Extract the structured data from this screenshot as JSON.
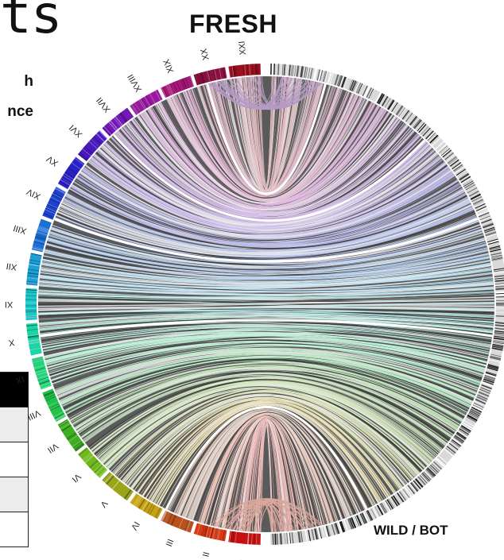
{
  "figure": {
    "clipped_heading": "ts",
    "side_line_1": "h",
    "side_line_2": "nce",
    "top_label": "FRESH",
    "bottom_label": "WILD / BOT"
  },
  "chromosomes": [
    {
      "name": "I",
      "color": "#c81010"
    },
    {
      "name": "II",
      "color": "#d83a14"
    },
    {
      "name": "III",
      "color": "#b8521c"
    },
    {
      "name": "IV",
      "color": "#c7a112"
    },
    {
      "name": "V",
      "color": "#9aa618"
    },
    {
      "name": "VI",
      "color": "#6fb81a"
    },
    {
      "name": "VII",
      "color": "#3fae22"
    },
    {
      "name": "VIII",
      "color": "#21c24a"
    },
    {
      "name": "IX",
      "color": "#22d37a"
    },
    {
      "name": "X",
      "color": "#1ad4a5"
    },
    {
      "name": "XI",
      "color": "#1ec8c8"
    },
    {
      "name": "XII",
      "color": "#1c9ed6"
    },
    {
      "name": "XIII",
      "color": "#1c6fd6"
    },
    {
      "name": "XIV",
      "color": "#1c40d0"
    },
    {
      "name": "XV",
      "color": "#2a20c8"
    },
    {
      "name": "XVI",
      "color": "#4a18c0"
    },
    {
      "name": "XVII",
      "color": "#7218b8"
    },
    {
      "name": "XVIII",
      "color": "#9a18a0"
    },
    {
      "name": "XIX",
      "color": "#a81878"
    },
    {
      "name": "XX",
      "color": "#8c1040"
    },
    {
      "name": "XXI",
      "color": "#9a1020"
    }
  ],
  "table": {
    "rows": [
      "header",
      "grey",
      "white",
      "grey",
      "white"
    ]
  },
  "colors": {
    "link_grey": "#4f4f4f",
    "ring_grey": "#9a9a9a"
  }
}
